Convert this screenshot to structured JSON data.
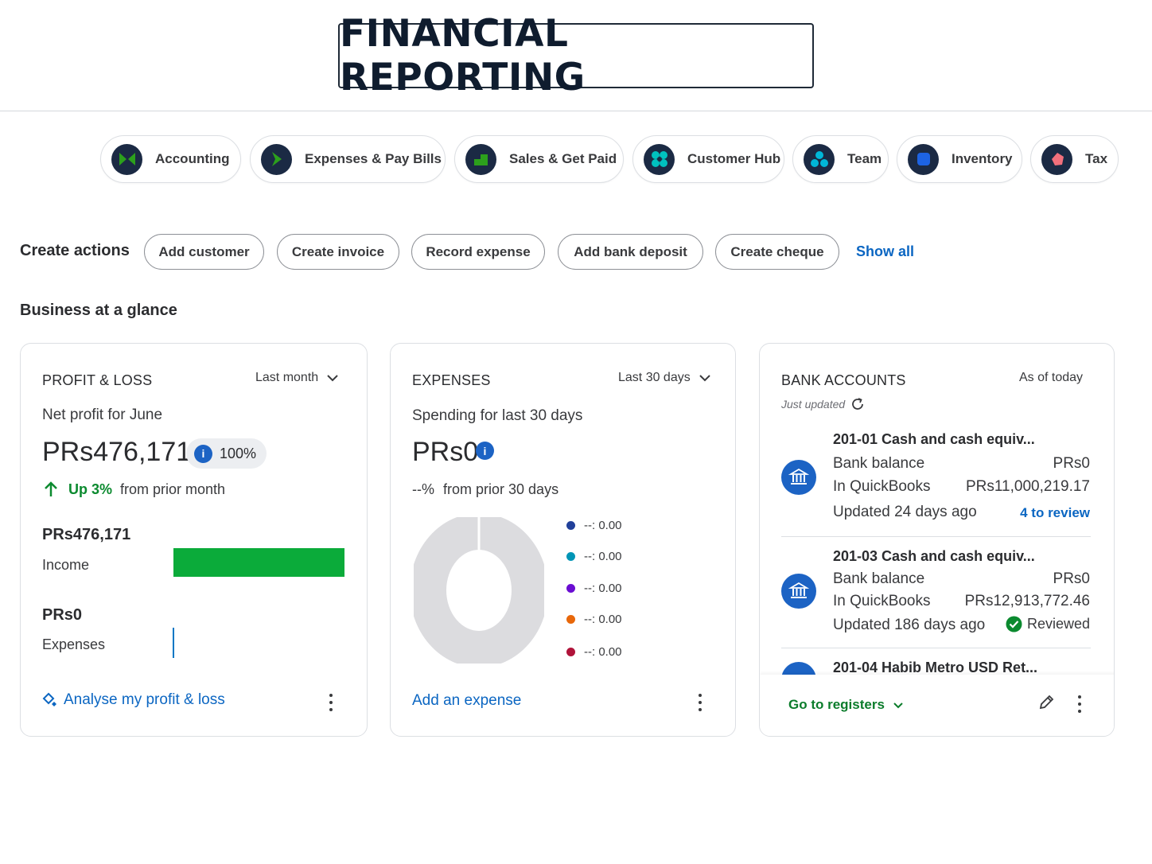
{
  "header": {
    "title": "FINANCIAL REPORTING"
  },
  "apps": [
    {
      "label": "Accounting",
      "icon": "accounting-icon",
      "color": "#2ca01c"
    },
    {
      "label": "Expenses & Pay Bills",
      "icon": "expenses-icon",
      "color": "#2ca01c"
    },
    {
      "label": "Sales & Get Paid",
      "icon": "sales-icon",
      "color": "#2ca01c"
    },
    {
      "label": "Customer Hub",
      "icon": "customer-hub-icon",
      "color": "#00c1bf"
    },
    {
      "label": "Team",
      "icon": "team-icon",
      "color": "#00b7d8"
    },
    {
      "label": "Inventory",
      "icon": "inventory-icon",
      "color": "#1d63e3"
    },
    {
      "label": "Tax",
      "icon": "tax-icon",
      "color": "#f2707c"
    }
  ],
  "create_actions": {
    "label": "Create actions",
    "buttons": [
      "Add customer",
      "Create invoice",
      "Record expense",
      "Add bank deposit",
      "Create cheque"
    ],
    "show_all": "Show all"
  },
  "glance": {
    "label": "Business at a glance"
  },
  "profit_loss": {
    "title": "PROFIT & LOSS",
    "filter": "Last month",
    "subtitle": "Net profit for June",
    "amount": "PRs476,171",
    "badge": "100%",
    "trend_label": "Up 3%",
    "trend_text": "from prior month",
    "income_amount": "PRs476,171",
    "income_label": "Income",
    "income_fraction": 1.0,
    "expenses_amount": "PRs0",
    "expenses_label": "Expenses",
    "expenses_fraction": 0.0,
    "link": "Analyse my profit & loss",
    "income_color": "#0bab3a",
    "expense_color": "#0077c5"
  },
  "expenses": {
    "title": "EXPENSES",
    "filter": "Last 30 days",
    "subtitle": "Spending for last 30 days",
    "amount": "PRs0",
    "change": "--%",
    "change_text": "from prior 30 days",
    "legend": [
      {
        "label": "--: 0.00",
        "color": "#21409a"
      },
      {
        "label": "--: 0.00",
        "color": "#0095b6"
      },
      {
        "label": "--: 0.00",
        "color": "#6a0dd2"
      },
      {
        "label": "--: 0.00",
        "color": "#e8670a"
      },
      {
        "label": "--: 0.00",
        "color": "#b0133a"
      }
    ],
    "link": "Add an expense"
  },
  "bank": {
    "title": "BANK ACCOUNTS",
    "as_of": "As of today",
    "updated": "Just updated",
    "accounts": [
      {
        "name": "201-01 Cash and cash equiv...",
        "bank_label": "Bank balance",
        "bank_value": "PRs0",
        "qb_label": "In QuickBooks",
        "qb_value": "PRs11,000,219.17",
        "updated": "Updated 24 days ago",
        "status": "4 to review"
      },
      {
        "name": "201-03 Cash and cash equiv...",
        "bank_label": "Bank balance",
        "bank_value": "PRs0",
        "qb_label": "In QuickBooks",
        "qb_value": "PRs12,913,772.46",
        "updated": "Updated 186 days ago",
        "status": "Reviewed"
      },
      {
        "name": "201-04 Habib Metro USD Ret..."
      }
    ],
    "footer_link": "Go to registers"
  }
}
